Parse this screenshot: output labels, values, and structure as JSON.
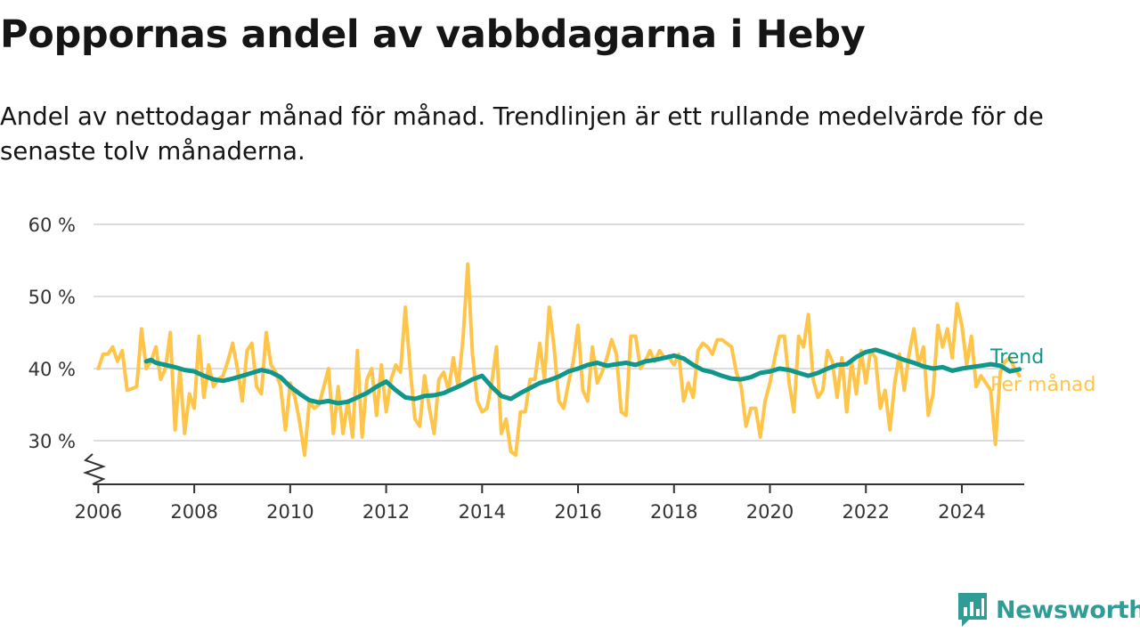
{
  "title": "Poppornas andel av vabbdagarna i Heby",
  "subtitle": "Andel av nettodagar månad för månad. Trendlinjen är ett rullande medelvärde för de senaste tolv månaderna.",
  "brand": "Newsworthy",
  "colors": {
    "monthly": "#ffc54a",
    "trend": "#10968b",
    "grid": "#dddddd",
    "axis": "#333333",
    "brand": "#2f9c95"
  },
  "chart_data": {
    "type": "line",
    "ylim": [
      25,
      60
    ],
    "xlim": [
      2005.9,
      2025.3
    ],
    "y_ticks": [
      {
        "value": 30,
        "label": "30 %"
      },
      {
        "value": 40,
        "label": "40 %"
      },
      {
        "value": 50,
        "label": "50 %"
      },
      {
        "value": 60,
        "label": "60 %"
      }
    ],
    "x_ticks": [
      {
        "value": 2006,
        "label": "2006"
      },
      {
        "value": 2008,
        "label": "2008"
      },
      {
        "value": 2010,
        "label": "2010"
      },
      {
        "value": 2012,
        "label": "2012"
      },
      {
        "value": 2014,
        "label": "2014"
      },
      {
        "value": 2016,
        "label": "2016"
      },
      {
        "value": 2018,
        "label": "2018"
      },
      {
        "value": 2020,
        "label": "2020"
      },
      {
        "value": 2022,
        "label": "2022"
      },
      {
        "value": 2024,
        "label": "2024"
      }
    ],
    "series": [
      {
        "name": "Per månad",
        "color": "#ffc54a",
        "points": [
          [
            2006.0,
            40.0
          ],
          [
            2006.1,
            42.0
          ],
          [
            2006.2,
            42.0
          ],
          [
            2006.3,
            43.0
          ],
          [
            2006.4,
            41.0
          ],
          [
            2006.5,
            42.5
          ],
          [
            2006.6,
            37.0
          ],
          [
            2006.7,
            37.2
          ],
          [
            2006.8,
            37.5
          ],
          [
            2006.9,
            45.5
          ],
          [
            2007.0,
            40.0
          ],
          [
            2007.1,
            41.0
          ],
          [
            2007.2,
            43.0
          ],
          [
            2007.3,
            38.5
          ],
          [
            2007.4,
            40.0
          ],
          [
            2007.5,
            45.0
          ],
          [
            2007.6,
            31.5
          ],
          [
            2007.7,
            40.0
          ],
          [
            2007.8,
            31.0
          ],
          [
            2007.9,
            36.5
          ],
          [
            2008.0,
            34.5
          ],
          [
            2008.1,
            44.5
          ],
          [
            2008.2,
            36.0
          ],
          [
            2008.3,
            40.5
          ],
          [
            2008.4,
            37.5
          ],
          [
            2008.5,
            38.5
          ],
          [
            2008.6,
            39.0
          ],
          [
            2008.7,
            41.0
          ],
          [
            2008.8,
            43.5
          ],
          [
            2008.9,
            40.0
          ],
          [
            2009.0,
            35.5
          ],
          [
            2009.1,
            42.5
          ],
          [
            2009.2,
            43.5
          ],
          [
            2009.3,
            37.5
          ],
          [
            2009.4,
            36.5
          ],
          [
            2009.5,
            45.0
          ],
          [
            2009.6,
            40.5
          ],
          [
            2009.7,
            39.5
          ],
          [
            2009.8,
            37.5
          ],
          [
            2009.9,
            31.5
          ],
          [
            2010.0,
            38.0
          ],
          [
            2010.1,
            36.0
          ],
          [
            2010.2,
            32.5
          ],
          [
            2010.3,
            28.0
          ],
          [
            2010.4,
            35.5
          ],
          [
            2010.5,
            34.5
          ],
          [
            2010.6,
            35.0
          ],
          [
            2010.7,
            37.5
          ],
          [
            2010.8,
            40.0
          ],
          [
            2010.9,
            31.0
          ],
          [
            2011.0,
            37.5
          ],
          [
            2011.1,
            31.0
          ],
          [
            2011.2,
            35.5
          ],
          [
            2011.3,
            30.5
          ],
          [
            2011.4,
            42.5
          ],
          [
            2011.5,
            30.5
          ],
          [
            2011.6,
            38.5
          ],
          [
            2011.7,
            40.0
          ],
          [
            2011.8,
            33.5
          ],
          [
            2011.9,
            40.5
          ],
          [
            2012.0,
            34.0
          ],
          [
            2012.1,
            38.5
          ],
          [
            2012.2,
            40.5
          ],
          [
            2012.3,
            39.5
          ],
          [
            2012.4,
            48.5
          ],
          [
            2012.5,
            40.0
          ],
          [
            2012.6,
            33.0
          ],
          [
            2012.7,
            32.0
          ],
          [
            2012.8,
            39.0
          ],
          [
            2012.9,
            34.5
          ],
          [
            2013.0,
            31.0
          ],
          [
            2013.1,
            38.5
          ],
          [
            2013.2,
            39.5
          ],
          [
            2013.3,
            37.0
          ],
          [
            2013.4,
            41.5
          ],
          [
            2013.5,
            37.5
          ],
          [
            2013.6,
            44.0
          ],
          [
            2013.7,
            54.5
          ],
          [
            2013.8,
            42.0
          ],
          [
            2013.9,
            35.5
          ],
          [
            2014.0,
            34.0
          ],
          [
            2014.1,
            34.5
          ],
          [
            2014.2,
            38.0
          ],
          [
            2014.3,
            43.0
          ],
          [
            2014.4,
            31.0
          ],
          [
            2014.5,
            33.0
          ],
          [
            2014.6,
            28.5
          ],
          [
            2014.7,
            28.0
          ],
          [
            2014.8,
            34.0
          ],
          [
            2014.9,
            34.0
          ],
          [
            2015.0,
            38.5
          ],
          [
            2015.1,
            38.5
          ],
          [
            2015.2,
            43.5
          ],
          [
            2015.3,
            38.5
          ],
          [
            2015.4,
            48.5
          ],
          [
            2015.5,
            43.0
          ],
          [
            2015.6,
            35.5
          ],
          [
            2015.7,
            34.5
          ],
          [
            2015.8,
            38.0
          ],
          [
            2015.9,
            41.0
          ],
          [
            2016.0,
            46.0
          ],
          [
            2016.1,
            37.0
          ],
          [
            2016.2,
            35.5
          ],
          [
            2016.3,
            43.0
          ],
          [
            2016.4,
            38.0
          ],
          [
            2016.5,
            39.5
          ],
          [
            2016.6,
            41.5
          ],
          [
            2016.7,
            44.0
          ],
          [
            2016.8,
            42.0
          ],
          [
            2016.9,
            34.0
          ],
          [
            2017.0,
            33.5
          ],
          [
            2017.1,
            44.5
          ],
          [
            2017.2,
            44.5
          ],
          [
            2017.3,
            40.0
          ],
          [
            2017.4,
            41.0
          ],
          [
            2017.5,
            42.5
          ],
          [
            2017.6,
            41.0
          ],
          [
            2017.7,
            42.5
          ],
          [
            2017.8,
            41.5
          ],
          [
            2017.9,
            41.5
          ],
          [
            2018.0,
            40.5
          ],
          [
            2018.1,
            42.0
          ],
          [
            2018.2,
            35.5
          ],
          [
            2018.3,
            38.0
          ],
          [
            2018.4,
            36.0
          ],
          [
            2018.5,
            42.5
          ],
          [
            2018.6,
            43.5
          ],
          [
            2018.7,
            43.0
          ],
          [
            2018.8,
            42.0
          ],
          [
            2018.9,
            44.0
          ],
          [
            2019.0,
            44.0
          ],
          [
            2019.1,
            43.5
          ],
          [
            2019.2,
            43.0
          ],
          [
            2019.3,
            39.5
          ],
          [
            2019.4,
            37.5
          ],
          [
            2019.5,
            32.0
          ],
          [
            2019.6,
            34.5
          ],
          [
            2019.7,
            34.5
          ],
          [
            2019.8,
            30.5
          ],
          [
            2019.9,
            35.5
          ],
          [
            2020.0,
            38.0
          ],
          [
            2020.1,
            41.5
          ],
          [
            2020.2,
            44.5
          ],
          [
            2020.3,
            44.5
          ],
          [
            2020.4,
            38.0
          ],
          [
            2020.5,
            34.0
          ],
          [
            2020.6,
            44.5
          ],
          [
            2020.7,
            43.0
          ],
          [
            2020.8,
            47.5
          ],
          [
            2020.9,
            38.5
          ],
          [
            2021.0,
            36.0
          ],
          [
            2021.1,
            37.0
          ],
          [
            2021.2,
            42.5
          ],
          [
            2021.3,
            41.0
          ],
          [
            2021.4,
            36.0
          ],
          [
            2021.5,
            41.5
          ],
          [
            2021.6,
            34.0
          ],
          [
            2021.7,
            41.0
          ],
          [
            2021.8,
            36.5
          ],
          [
            2021.9,
            42.5
          ],
          [
            2022.0,
            38.0
          ],
          [
            2022.1,
            42.5
          ],
          [
            2022.2,
            41.5
          ],
          [
            2022.3,
            34.5
          ],
          [
            2022.4,
            37.0
          ],
          [
            2022.5,
            31.5
          ],
          [
            2022.6,
            38.0
          ],
          [
            2022.7,
            42.0
          ],
          [
            2022.8,
            37.0
          ],
          [
            2022.9,
            42.0
          ],
          [
            2023.0,
            45.5
          ],
          [
            2023.1,
            40.5
          ],
          [
            2023.2,
            43.0
          ],
          [
            2023.3,
            33.5
          ],
          [
            2023.4,
            36.5
          ],
          [
            2023.5,
            46.0
          ],
          [
            2023.6,
            43.0
          ],
          [
            2023.7,
            45.5
          ],
          [
            2023.8,
            41.5
          ],
          [
            2023.9,
            49.0
          ],
          [
            2024.0,
            46.0
          ],
          [
            2024.1,
            40.5
          ],
          [
            2024.2,
            44.5
          ],
          [
            2024.3,
            37.5
          ],
          [
            2024.4,
            39.0
          ],
          [
            2024.5,
            38.0
          ],
          [
            2024.6,
            37.0
          ],
          [
            2024.7,
            29.5
          ],
          [
            2024.8,
            39.5
          ],
          [
            2024.9,
            41.0
          ],
          [
            2025.0,
            41.5
          ],
          [
            2025.1,
            40.0
          ],
          [
            2025.2,
            39.0
          ]
        ]
      },
      {
        "name": "Trend",
        "color": "#10968b",
        "points": [
          [
            2007.0,
            41.0
          ],
          [
            2007.1,
            41.2
          ],
          [
            2007.2,
            40.8
          ],
          [
            2007.4,
            40.5
          ],
          [
            2007.6,
            40.2
          ],
          [
            2007.8,
            39.8
          ],
          [
            2008.0,
            39.6
          ],
          [
            2008.2,
            39.0
          ],
          [
            2008.4,
            38.5
          ],
          [
            2008.6,
            38.3
          ],
          [
            2008.8,
            38.6
          ],
          [
            2009.0,
            39.0
          ],
          [
            2009.2,
            39.4
          ],
          [
            2009.4,
            39.8
          ],
          [
            2009.6,
            39.5
          ],
          [
            2009.8,
            38.8
          ],
          [
            2010.0,
            37.5
          ],
          [
            2010.2,
            36.5
          ],
          [
            2010.4,
            35.6
          ],
          [
            2010.6,
            35.3
          ],
          [
            2010.8,
            35.5
          ],
          [
            2011.0,
            35.2
          ],
          [
            2011.2,
            35.4
          ],
          [
            2011.4,
            36.0
          ],
          [
            2011.6,
            36.6
          ],
          [
            2011.8,
            37.5
          ],
          [
            2012.0,
            38.2
          ],
          [
            2012.2,
            37.0
          ],
          [
            2012.4,
            36.0
          ],
          [
            2012.6,
            35.8
          ],
          [
            2012.8,
            36.2
          ],
          [
            2013.0,
            36.3
          ],
          [
            2013.2,
            36.6
          ],
          [
            2013.4,
            37.2
          ],
          [
            2013.6,
            37.8
          ],
          [
            2013.8,
            38.5
          ],
          [
            2014.0,
            39.0
          ],
          [
            2014.2,
            37.5
          ],
          [
            2014.4,
            36.2
          ],
          [
            2014.6,
            35.8
          ],
          [
            2014.8,
            36.6
          ],
          [
            2015.0,
            37.3
          ],
          [
            2015.2,
            38.0
          ],
          [
            2015.4,
            38.4
          ],
          [
            2015.6,
            38.9
          ],
          [
            2015.8,
            39.6
          ],
          [
            2016.0,
            40.0
          ],
          [
            2016.2,
            40.5
          ],
          [
            2016.4,
            40.8
          ],
          [
            2016.6,
            40.4
          ],
          [
            2016.8,
            40.6
          ],
          [
            2017.0,
            40.8
          ],
          [
            2017.2,
            40.5
          ],
          [
            2017.4,
            41.0
          ],
          [
            2017.6,
            41.2
          ],
          [
            2017.8,
            41.5
          ],
          [
            2018.0,
            41.8
          ],
          [
            2018.2,
            41.4
          ],
          [
            2018.4,
            40.5
          ],
          [
            2018.6,
            39.8
          ],
          [
            2018.8,
            39.5
          ],
          [
            2019.0,
            39.0
          ],
          [
            2019.2,
            38.6
          ],
          [
            2019.4,
            38.5
          ],
          [
            2019.6,
            38.8
          ],
          [
            2019.8,
            39.4
          ],
          [
            2020.0,
            39.6
          ],
          [
            2020.2,
            40.0
          ],
          [
            2020.4,
            39.8
          ],
          [
            2020.6,
            39.4
          ],
          [
            2020.8,
            39.0
          ],
          [
            2021.0,
            39.4
          ],
          [
            2021.2,
            40.0
          ],
          [
            2021.4,
            40.5
          ],
          [
            2021.6,
            40.6
          ],
          [
            2021.8,
            41.6
          ],
          [
            2022.0,
            42.3
          ],
          [
            2022.2,
            42.6
          ],
          [
            2022.4,
            42.2
          ],
          [
            2022.6,
            41.7
          ],
          [
            2022.8,
            41.2
          ],
          [
            2023.0,
            40.8
          ],
          [
            2023.2,
            40.3
          ],
          [
            2023.4,
            40.0
          ],
          [
            2023.6,
            40.2
          ],
          [
            2023.8,
            39.7
          ],
          [
            2024.0,
            40.0
          ],
          [
            2024.2,
            40.2
          ],
          [
            2024.4,
            40.4
          ],
          [
            2024.6,
            40.6
          ],
          [
            2024.8,
            40.4
          ],
          [
            2025.0,
            39.6
          ],
          [
            2025.2,
            39.9
          ]
        ]
      }
    ],
    "legend": [
      {
        "name": "Trend",
        "color": "#10968b"
      },
      {
        "name": "Per månad",
        "color": "#ffc54a"
      }
    ]
  }
}
